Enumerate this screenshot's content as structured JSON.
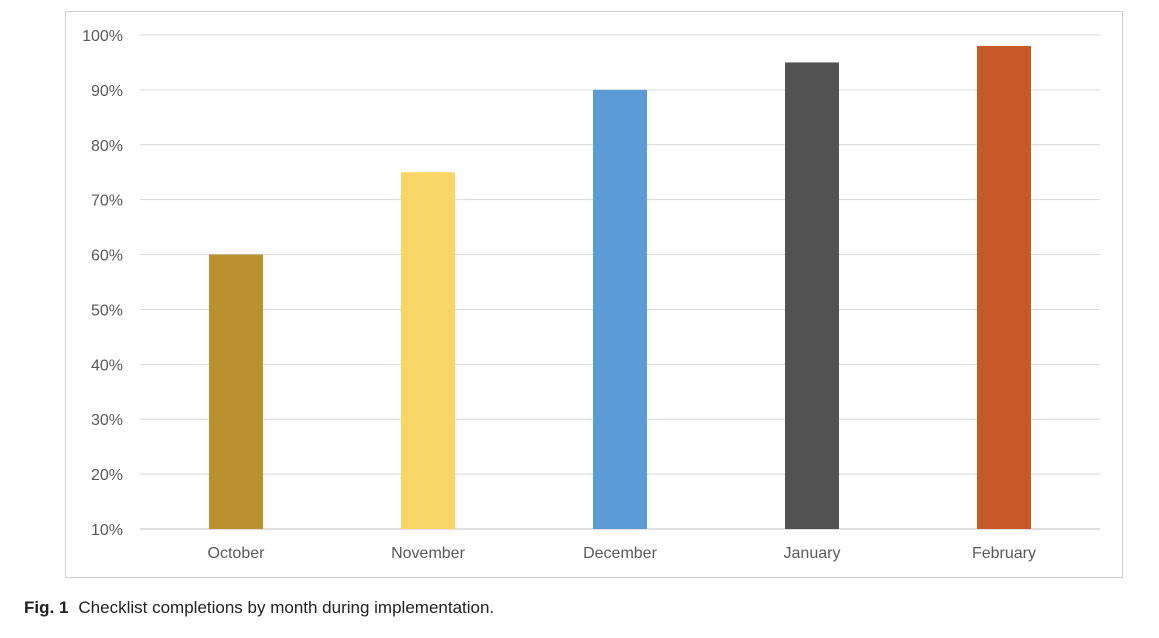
{
  "chart_data": {
    "type": "bar",
    "categories": [
      "October",
      "November",
      "December",
      "January",
      "February"
    ],
    "values": [
      60,
      75,
      90,
      95,
      98
    ],
    "colors": [
      "#bb902e",
      "#fad666",
      "#5b9bd5",
      "#525252",
      "#c55a26"
    ],
    "ylim": [
      10,
      100
    ],
    "yticks": [
      10,
      20,
      30,
      40,
      50,
      60,
      70,
      80,
      90,
      100
    ],
    "ytick_labels": [
      "10%",
      "20%",
      "30%",
      "40%",
      "50%",
      "60%",
      "70%",
      "80%",
      "90%",
      "100%"
    ],
    "grid": true,
    "legend": "none",
    "title": "",
    "xlabel": "",
    "ylabel": ""
  },
  "caption": {
    "label": "Fig. 1",
    "text": "Checklist completions by month during implementation."
  }
}
